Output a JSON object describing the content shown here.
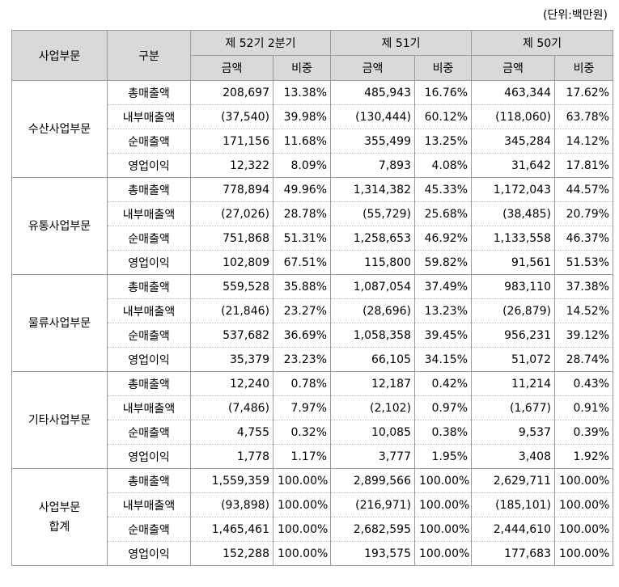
{
  "unit_label": "(단위:백만원)",
  "header": {
    "segment": "사업부문",
    "category": "구분",
    "periods": [
      "제 52기 2분기",
      "제 51기",
      "제 50기"
    ],
    "amount": "금액",
    "ratio": "비중"
  },
  "segments": [
    {
      "name": "수산사업부문",
      "rows": [
        {
          "item": "총매출액",
          "v": [
            "208,697",
            "13.38%",
            "485,943",
            "16.76%",
            "463,344",
            "17.62%"
          ]
        },
        {
          "item": "내부매출액",
          "v": [
            "(37,540)",
            "39.98%",
            "(130,444)",
            "60.12%",
            "(118,060)",
            "63.78%"
          ]
        },
        {
          "item": "순매출액",
          "v": [
            "171,156",
            "11.68%",
            "355,499",
            "13.25%",
            "345,284",
            "14.12%"
          ]
        },
        {
          "item": "영업이익",
          "v": [
            "12,322",
            "8.09%",
            "7,893",
            "4.08%",
            "31,642",
            "17.81%"
          ]
        }
      ]
    },
    {
      "name": "유통사업부문",
      "rows": [
        {
          "item": "총매출액",
          "v": [
            "778,894",
            "49.96%",
            "1,314,382",
            "45.33%",
            "1,172,043",
            "44.57%"
          ]
        },
        {
          "item": "내부매출액",
          "v": [
            "(27,026)",
            "28.78%",
            "(55,729)",
            "25.68%",
            "(38,485)",
            "20.79%"
          ]
        },
        {
          "item": "순매출액",
          "v": [
            "751,868",
            "51.31%",
            "1,258,653",
            "46.92%",
            "1,133,558",
            "46.37%"
          ]
        },
        {
          "item": "영업이익",
          "v": [
            "102,809",
            "67.51%",
            "115,800",
            "59.82%",
            "91,561",
            "51.53%"
          ]
        }
      ]
    },
    {
      "name": "물류사업부문",
      "rows": [
        {
          "item": "총매출액",
          "v": [
            "559,528",
            "35.88%",
            "1,087,054",
            "37.49%",
            "983,110",
            "37.38%"
          ]
        },
        {
          "item": "내부매출액",
          "v": [
            "(21,846)",
            "23.27%",
            "(28,696)",
            "13.23%",
            "(26,879)",
            "14.52%"
          ]
        },
        {
          "item": "순매출액",
          "v": [
            "537,682",
            "36.69%",
            "1,058,358",
            "39.45%",
            "956,231",
            "39.12%"
          ]
        },
        {
          "item": "영업이익",
          "v": [
            "35,379",
            "23.23%",
            "66,105",
            "34.15%",
            "51,072",
            "28.74%"
          ]
        }
      ]
    },
    {
      "name": "기타사업부문",
      "rows": [
        {
          "item": "총매출액",
          "v": [
            "12,240",
            "0.78%",
            "12,187",
            "0.42%",
            "11,214",
            "0.43%"
          ]
        },
        {
          "item": "내부매출액",
          "v": [
            "(7,486)",
            "7.97%",
            "(2,102)",
            "0.97%",
            "(1,677)",
            "0.91%"
          ]
        },
        {
          "item": "순매출액",
          "v": [
            "4,755",
            "0.32%",
            "10,085",
            "0.38%",
            "9,537",
            "0.39%"
          ]
        },
        {
          "item": "영업이익",
          "v": [
            "1,778",
            "1.17%",
            "3,777",
            "1.95%",
            "3,408",
            "1.92%"
          ]
        }
      ]
    },
    {
      "name": "사업부문\n합계",
      "rows": [
        {
          "item": "총매출액",
          "v": [
            "1,559,359",
            "100.00%",
            "2,899,566",
            "100.00%",
            "2,629,711",
            "100.00%"
          ]
        },
        {
          "item": "내부매출액",
          "v": [
            "(93,898)",
            "100.00%",
            "(216,971)",
            "100.00%",
            "(185,101)",
            "100.00%"
          ]
        },
        {
          "item": "순매출액",
          "v": [
            "1,465,461",
            "100.00%",
            "2,682,595",
            "100.00%",
            "2,444,610",
            "100.00%"
          ]
        },
        {
          "item": "영업이익",
          "v": [
            "152,288",
            "100.00%",
            "193,575",
            "100.00%",
            "177,683",
            "100.00%"
          ]
        }
      ]
    }
  ]
}
